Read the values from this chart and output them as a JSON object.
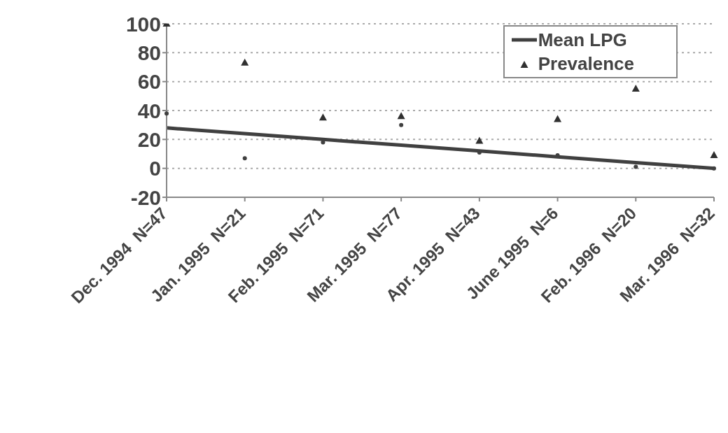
{
  "chart_data": {
    "type": "scatter",
    "categories": [
      "Dec. 1994  N=47",
      "Jan. 1995  N=21",
      "Feb. 1995  N=71",
      "Mar. 1995  N=77",
      "Apr. 1995  N=43",
      "June 1995  N=6",
      "Feb. 1996  N=20",
      "Mar. 1996  N=32"
    ],
    "series": [
      {
        "name": "Mean LPG",
        "type": "line",
        "color": "#404040",
        "values": [
          28,
          24,
          20,
          16,
          12,
          8,
          4,
          0
        ]
      },
      {
        "name": "Prevalence",
        "marker": "triangle",
        "color": "#303030",
        "values": [
          100,
          73,
          35,
          36,
          19,
          34,
          55,
          9
        ]
      },
      {
        "marker": "circle",
        "color": "#404040",
        "values": [
          38,
          7,
          18,
          30,
          11,
          9,
          1,
          0
        ]
      }
    ],
    "ylim": [
      -20,
      100
    ],
    "yticks": [
      -20,
      0,
      20,
      40,
      60,
      80,
      100
    ],
    "grid": "y",
    "legend": "top right"
  }
}
